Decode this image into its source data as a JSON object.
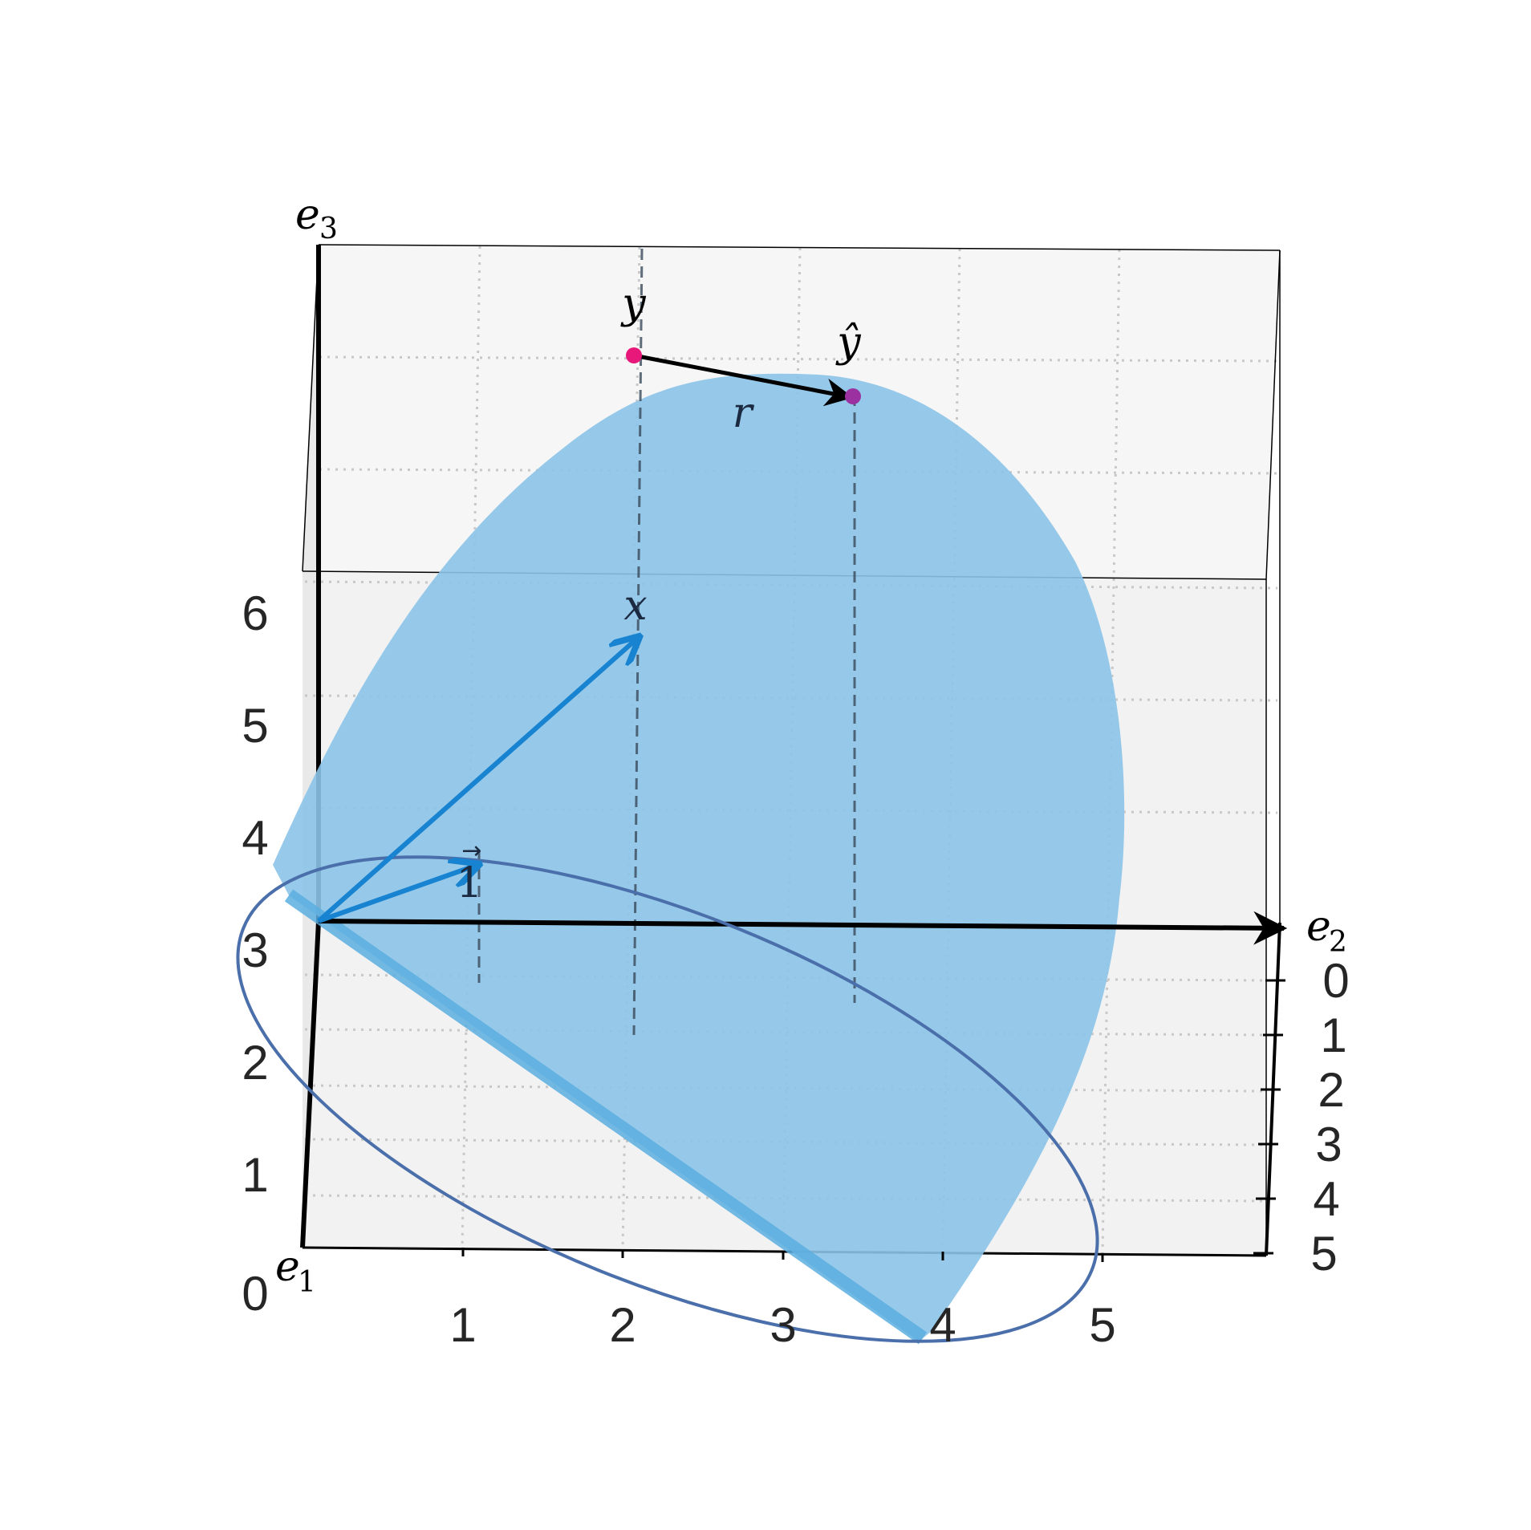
{
  "figure": {
    "axes": {
      "e1": {
        "name": "e",
        "sub": "1",
        "ticks": [
          "0",
          "1",
          "2",
          "3",
          "4",
          "5"
        ]
      },
      "e2": {
        "name": "e",
        "sub": "2",
        "ticks": [
          "0",
          "1",
          "2",
          "3",
          "4",
          "5"
        ]
      },
      "e3": {
        "name": "e",
        "sub": "3",
        "ticks": [
          "1",
          "2",
          "3",
          "4",
          "5",
          "6"
        ]
      }
    },
    "labels": {
      "y": "y",
      "y_hat": "ŷ",
      "r": "r",
      "x": "x",
      "one_vec": "1"
    },
    "colors": {
      "plane": "#8cc4e8",
      "plane_edge": "#5aaee0",
      "vector_blue": "#1783d1",
      "ellipse": "#4a6faa",
      "point_y": "#e8187a",
      "point_y_hat": "#9b30a0",
      "axis": "#000000",
      "dashed": "#3a4a5a",
      "pane": "#f4f4f4",
      "grid": "#c8c8c8"
    }
  }
}
